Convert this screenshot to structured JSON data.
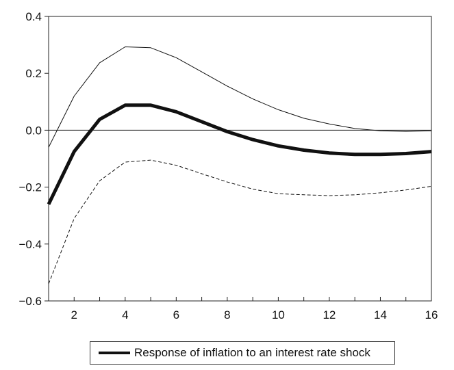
{
  "chart_data": {
    "type": "line",
    "title": "",
    "xlabel": "",
    "ylabel": "",
    "x": [
      1,
      2,
      3,
      4,
      5,
      6,
      7,
      8,
      9,
      10,
      11,
      12,
      13,
      14,
      15,
      16
    ],
    "xlim": [
      1,
      16
    ],
    "ylim": [
      -0.6,
      0.4
    ],
    "x_ticks": [
      2,
      4,
      6,
      8,
      10,
      12,
      14,
      16
    ],
    "y_ticks": [
      0.4,
      0.2,
      0.0,
      -0.2,
      -0.4,
      -0.6
    ],
    "x_tick_labels": [
      "2",
      "4",
      "6",
      "8",
      "10",
      "12",
      "14",
      "16"
    ],
    "y_tick_labels": [
      "0.4",
      "0.2",
      "0.0",
      "−0.2",
      "−0.4",
      "−0.6"
    ],
    "zero_line": true,
    "grid": false,
    "legend_position": "bottom-center",
    "series": [
      {
        "name": "Response of inflation to an interest rate shock",
        "style": "solid-thick",
        "color": "#111111",
        "values": [
          -0.26,
          -0.075,
          0.038,
          0.088,
          0.088,
          0.065,
          0.03,
          -0.005,
          -0.033,
          -0.055,
          -0.07,
          -0.08,
          -0.085,
          -0.085,
          -0.082,
          -0.075
        ]
      },
      {
        "style": "solid-thin",
        "color": "#111111",
        "values": [
          -0.06,
          0.12,
          0.237,
          0.293,
          0.29,
          0.255,
          0.205,
          0.155,
          0.11,
          0.072,
          0.042,
          0.022,
          0.006,
          -0.002,
          -0.004,
          -0.002
        ]
      },
      {
        "style": "dashed",
        "color": "#111111",
        "values": [
          -0.54,
          -0.31,
          -0.178,
          -0.112,
          -0.105,
          -0.123,
          -0.153,
          -0.182,
          -0.207,
          -0.223,
          -0.227,
          -0.23,
          -0.227,
          -0.22,
          -0.21,
          -0.197
        ]
      }
    ]
  }
}
